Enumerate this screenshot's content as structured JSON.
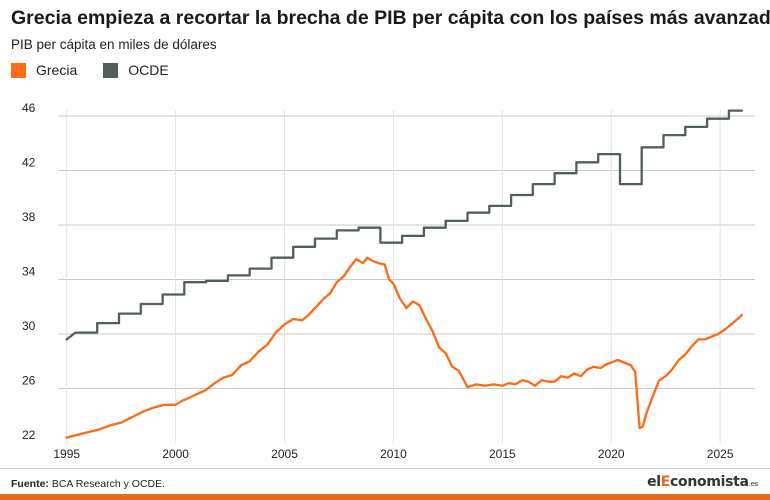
{
  "title": "Grecia empieza a recortar la brecha de PIB per cápita con los países más avanzados",
  "subtitle": "PIB per cápita en miles de dólares",
  "legend": [
    {
      "label": "Grecia",
      "color": "#ff6a13"
    },
    {
      "label": "OCDE",
      "color": "#4f5f5c"
    }
  ],
  "source_label": "Fuente:",
  "source_text": "BCA Research y OCDE.",
  "logo": {
    "pre": "el",
    "accent": "E",
    "post": "conomista",
    "suffix": ".es"
  },
  "chart_data": {
    "type": "line",
    "title": "Grecia empieza a recortar la brecha de PIB per cápita con los países más avanzados",
    "ylabel": "PIB per cápita en miles de dólares",
    "xlim": [
      1994.6,
      2026.6
    ],
    "ylim": [
      22,
      46
    ],
    "y_ticks": [
      22,
      26,
      30,
      34,
      38,
      42,
      46
    ],
    "x_ticks": [
      1995,
      2000,
      2005,
      2010,
      2015,
      2020,
      2025
    ],
    "grid": true,
    "legend_position": "top-left",
    "series": [
      {
        "name": "Grecia",
        "color": "#ff6a13",
        "x": [
          1995.0,
          1995.5,
          1996.0,
          1996.5,
          1997.0,
          1997.5,
          1998.0,
          1998.5,
          1999.0,
          1999.5,
          2000.0,
          2000.3,
          2000.6,
          2001.0,
          2001.4,
          2001.8,
          2002.2,
          2002.6,
          2003.0,
          2003.4,
          2003.8,
          2004.2,
          2004.6,
          2005.0,
          2005.4,
          2005.8,
          2006.1,
          2006.4,
          2006.8,
          2007.1,
          2007.4,
          2007.7,
          2008.0,
          2008.3,
          2008.6,
          2008.8,
          2009.0,
          2009.3,
          2009.6,
          2009.8,
          2010.0,
          2010.3,
          2010.6,
          2010.9,
          2011.2,
          2011.5,
          2011.8,
          2012.1,
          2012.4,
          2012.7,
          2013.0,
          2013.4,
          2013.8,
          2014.2,
          2014.6,
          2015.0,
          2015.3,
          2015.6,
          2015.9,
          2016.2,
          2016.5,
          2016.8,
          2017.1,
          2017.4,
          2017.7,
          2018.0,
          2018.3,
          2018.6,
          2018.9,
          2019.2,
          2019.5,
          2019.8,
          2020.0,
          2020.3,
          2020.6,
          2020.9,
          2021.1,
          2021.3,
          2021.45,
          2021.6,
          2021.9,
          2022.2,
          2022.5,
          2022.8,
          2023.1,
          2023.4,
          2023.7,
          2024.0,
          2024.3,
          2024.6,
          2024.9,
          2025.2,
          2025.5,
          2025.8,
          2026.0
        ],
        "values": [
          22.4,
          22.6,
          22.8,
          23.0,
          23.3,
          23.5,
          23.9,
          24.3,
          24.6,
          24.8,
          24.8,
          25.1,
          25.3,
          25.6,
          25.9,
          26.4,
          26.8,
          27.0,
          27.7,
          28.0,
          28.7,
          29.2,
          30.1,
          30.7,
          31.1,
          31.0,
          31.4,
          31.9,
          32.6,
          33.0,
          33.8,
          34.2,
          34.9,
          35.5,
          35.2,
          35.6,
          35.4,
          35.2,
          35.1,
          34.0,
          33.7,
          32.6,
          31.9,
          32.4,
          32.1,
          31.1,
          30.2,
          29.0,
          28.6,
          27.6,
          27.3,
          26.1,
          26.3,
          26.2,
          26.3,
          26.2,
          26.4,
          26.3,
          26.6,
          26.5,
          26.2,
          26.6,
          26.5,
          26.5,
          26.9,
          26.8,
          27.1,
          26.9,
          27.4,
          27.6,
          27.5,
          27.8,
          27.9,
          28.1,
          27.9,
          27.7,
          27.2,
          23.1,
          23.2,
          24.1,
          25.4,
          26.6,
          26.9,
          27.4,
          28.1,
          28.5,
          29.1,
          29.6,
          29.6,
          29.8,
          30.0,
          30.3,
          30.7,
          31.1,
          31.4
        ]
      },
      {
        "name": "OCDE",
        "color": "#4f5f5c",
        "x": [
          1995.0,
          1995.4,
          1995.4,
          1996.4,
          1996.4,
          1997.4,
          1997.4,
          1998.4,
          1998.4,
          1999.4,
          1999.4,
          2000.4,
          2000.4,
          2001.4,
          2001.4,
          2002.4,
          2002.4,
          2003.4,
          2003.4,
          2004.4,
          2004.4,
          2005.4,
          2005.4,
          2006.4,
          2006.4,
          2007.4,
          2007.4,
          2008.4,
          2008.4,
          2009.4,
          2009.4,
          2010.4,
          2010.4,
          2011.4,
          2011.4,
          2012.4,
          2012.4,
          2013.4,
          2013.4,
          2014.4,
          2014.4,
          2015.4,
          2015.4,
          2016.4,
          2016.4,
          2017.4,
          2017.4,
          2018.4,
          2018.4,
          2019.4,
          2019.4,
          2020.4,
          2020.4,
          2021.4,
          2021.4,
          2022.4,
          2022.4,
          2023.4,
          2023.4,
          2024.4,
          2024.4,
          2025.4,
          2025.4,
          2026.0
        ],
        "values": [
          29.6,
          30.1,
          30.1,
          30.1,
          30.8,
          30.8,
          31.5,
          31.5,
          32.2,
          32.2,
          32.9,
          32.9,
          33.8,
          33.8,
          33.9,
          33.9,
          34.3,
          34.3,
          34.8,
          34.8,
          35.6,
          35.6,
          36.4,
          36.4,
          37.0,
          37.0,
          37.6,
          37.6,
          37.8,
          37.8,
          36.7,
          36.7,
          37.2,
          37.2,
          37.8,
          37.8,
          38.3,
          38.3,
          38.9,
          38.9,
          39.4,
          39.4,
          40.2,
          40.2,
          41.0,
          41.0,
          41.8,
          41.8,
          42.6,
          42.6,
          43.2,
          43.2,
          41.0,
          41.0,
          43.7,
          43.7,
          44.6,
          44.6,
          45.2,
          45.2,
          45.8,
          45.8,
          46.4,
          46.4
        ]
      }
    ]
  }
}
